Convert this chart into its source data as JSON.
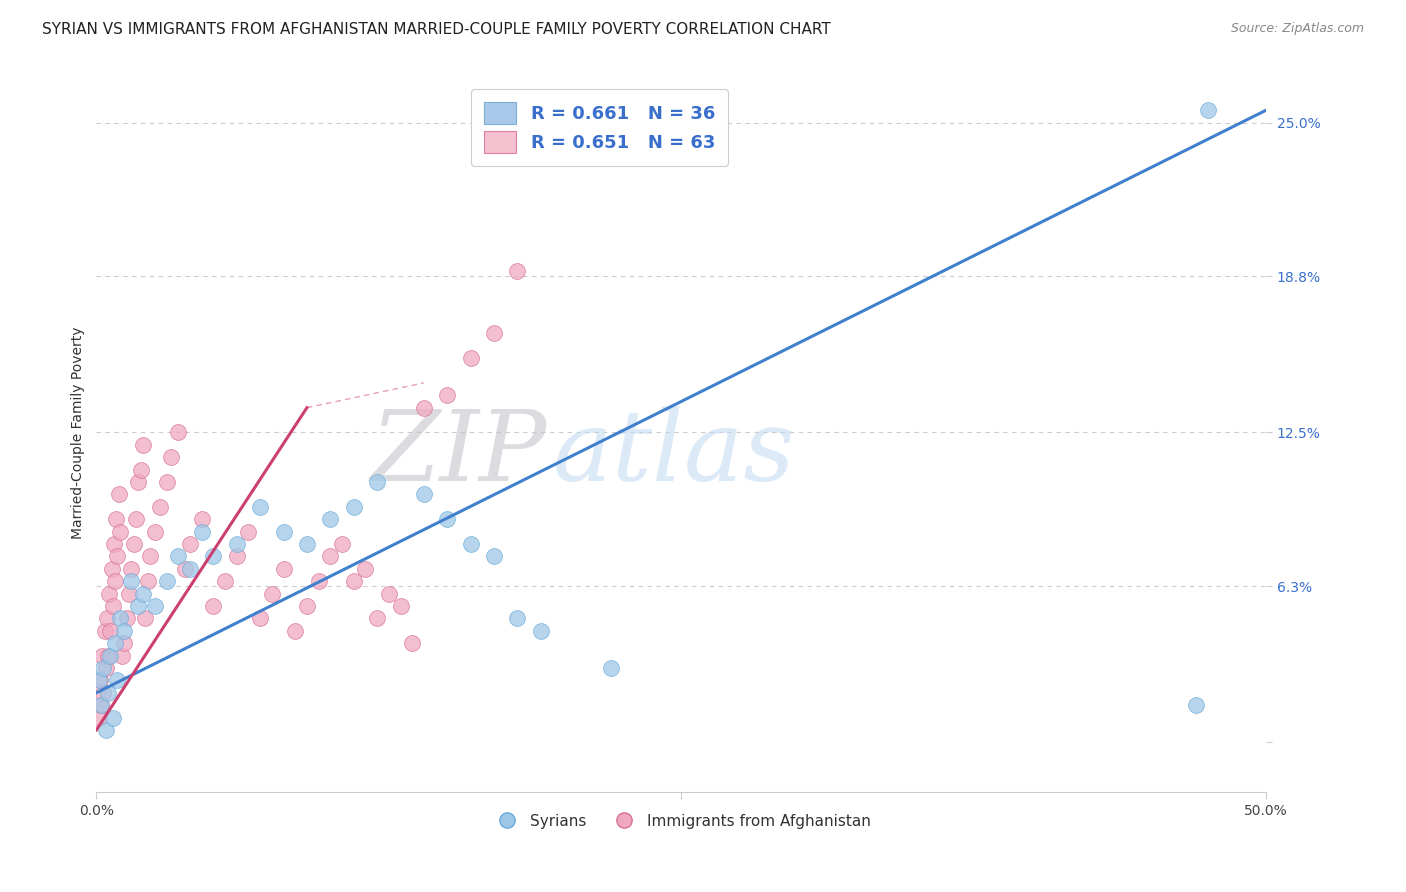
{
  "title": "SYRIAN VS IMMIGRANTS FROM AFGHANISTAN MARRIED-COUPLE FAMILY POVERTY CORRELATION CHART",
  "source": "Source: ZipAtlas.com",
  "ylabel": "Married-Couple Family Poverty",
  "ylabel_ticks": [
    0.0,
    6.3,
    12.5,
    18.8,
    25.0
  ],
  "ylabel_tick_labels": [
    "",
    "6.3%",
    "12.5%",
    "18.8%",
    "25.0%"
  ],
  "xlim": [
    0.0,
    50.0
  ],
  "ylim": [
    -2.0,
    27.0
  ],
  "watermark_zip": "ZIP",
  "watermark_atlas": "atlas",
  "legend_entries": [
    {
      "label": "R = 0.661   N = 36",
      "color": "#aac8ea",
      "edge_color": "#7bafd4",
      "text_color": "#3a6fcc"
    },
    {
      "label": "R = 0.651   N = 63",
      "color": "#f5c0d0",
      "edge_color": "#e080a0",
      "text_color": "#3a6fcc"
    }
  ],
  "syrians": {
    "color": "#9ec8e8",
    "edge_color": "#6aaad8",
    "alpha": 0.75,
    "regression_color": "#4080cc",
    "regression_line": [
      0.0,
      2.0,
      50.0,
      25.5
    ],
    "R": 0.661,
    "N": 36,
    "x": [
      0.1,
      0.2,
      0.3,
      0.4,
      0.5,
      0.6,
      0.7,
      0.8,
      0.9,
      1.0,
      1.2,
      1.5,
      1.8,
      2.0,
      2.5,
      3.0,
      3.5,
      4.0,
      4.5,
      5.0,
      6.0,
      7.0,
      8.0,
      9.0,
      10.0,
      11.0,
      12.0,
      14.0,
      15.0,
      16.0,
      17.0,
      18.0,
      19.0,
      22.0,
      47.0,
      47.5
    ],
    "y": [
      2.5,
      1.5,
      3.0,
      0.5,
      2.0,
      3.5,
      1.0,
      4.0,
      2.5,
      5.0,
      4.5,
      6.5,
      5.5,
      6.0,
      5.5,
      6.5,
      7.5,
      7.0,
      8.5,
      7.5,
      8.0,
      9.5,
      8.5,
      8.0,
      9.0,
      9.5,
      10.5,
      10.0,
      9.0,
      8.0,
      7.5,
      5.0,
      4.5,
      3.0,
      1.5,
      25.5
    ]
  },
  "afghans": {
    "color": "#f0a8c0",
    "edge_color": "#d87090",
    "alpha": 0.75,
    "regression_color": "#cc4070",
    "regression_line": [
      0.0,
      0.5,
      9.0,
      13.5
    ],
    "regression_dashed": [
      9.0,
      13.5,
      14.0,
      14.5
    ],
    "R": 0.651,
    "N": 63,
    "x": [
      0.1,
      0.15,
      0.2,
      0.25,
      0.3,
      0.35,
      0.4,
      0.45,
      0.5,
      0.55,
      0.6,
      0.65,
      0.7,
      0.75,
      0.8,
      0.85,
      0.9,
      0.95,
      1.0,
      1.1,
      1.2,
      1.3,
      1.4,
      1.5,
      1.6,
      1.7,
      1.8,
      1.9,
      2.0,
      2.1,
      2.2,
      2.3,
      2.5,
      2.7,
      3.0,
      3.2,
      3.5,
      3.8,
      4.0,
      4.5,
      5.0,
      5.5,
      6.0,
      6.5,
      7.0,
      7.5,
      8.0,
      8.5,
      9.0,
      9.5,
      10.0,
      10.5,
      11.0,
      11.5,
      12.0,
      12.5,
      13.0,
      13.5,
      14.0,
      15.0,
      16.0,
      17.0,
      18.0
    ],
    "y": [
      1.0,
      2.5,
      1.5,
      3.5,
      2.0,
      4.5,
      3.0,
      5.0,
      3.5,
      6.0,
      4.5,
      7.0,
      5.5,
      8.0,
      6.5,
      9.0,
      7.5,
      10.0,
      8.5,
      3.5,
      4.0,
      5.0,
      6.0,
      7.0,
      8.0,
      9.0,
      10.5,
      11.0,
      12.0,
      5.0,
      6.5,
      7.5,
      8.5,
      9.5,
      10.5,
      11.5,
      12.5,
      7.0,
      8.0,
      9.0,
      5.5,
      6.5,
      7.5,
      8.5,
      5.0,
      6.0,
      7.0,
      4.5,
      5.5,
      6.5,
      7.5,
      8.0,
      6.5,
      7.0,
      5.0,
      6.0,
      5.5,
      4.0,
      13.5,
      14.0,
      15.5,
      16.5,
      19.0
    ]
  },
  "grid_color": "#cccccc",
  "bg_color": "#ffffff",
  "title_fontsize": 11,
  "axis_label_fontsize": 10,
  "tick_fontsize": 10
}
